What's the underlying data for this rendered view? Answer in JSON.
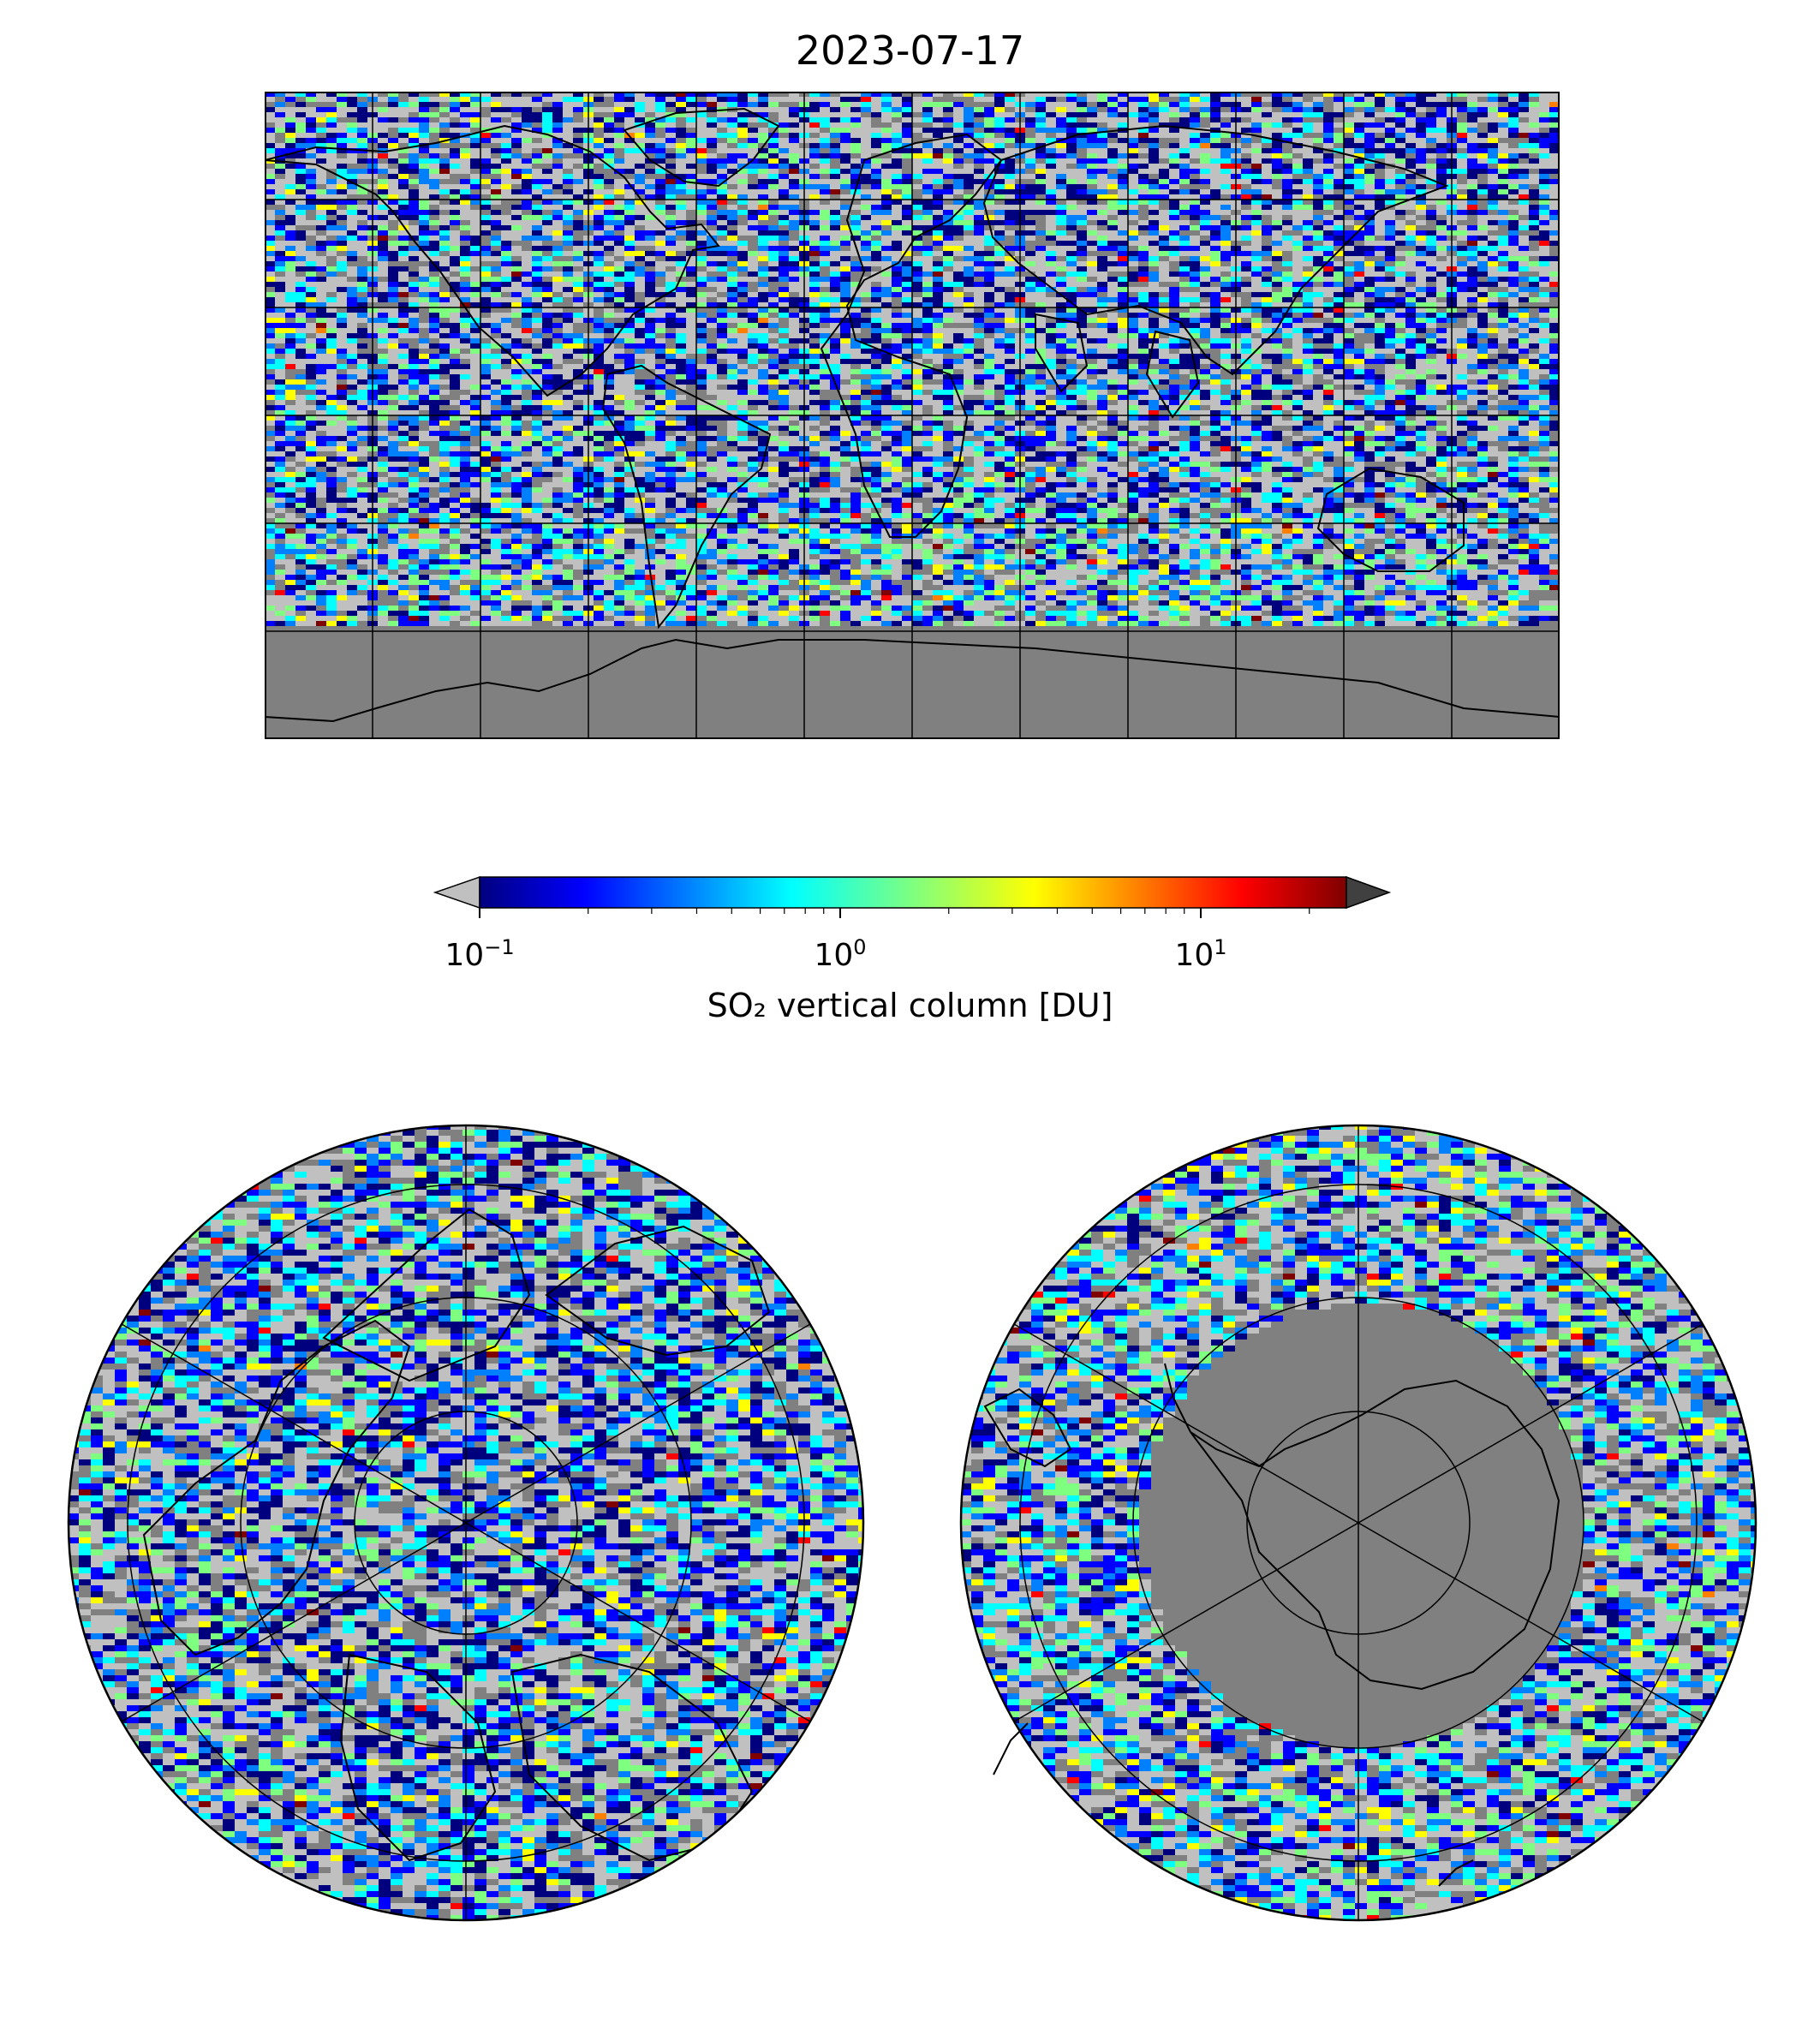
{
  "title": "2023-07-17",
  "colorbar": {
    "label": "SO₂ vertical column [DU]",
    "scale": "log",
    "range": [
      0.1,
      25
    ],
    "ticks": [
      {
        "base": "10",
        "exp": "−1",
        "value": 0.1
      },
      {
        "base": "10",
        "exp": "0",
        "value": 1
      },
      {
        "base": "10",
        "exp": "1",
        "value": 10
      }
    ],
    "colormap": [
      "#00007f",
      "#0000ff",
      "#007fff",
      "#00ffff",
      "#7fff7f",
      "#ffff00",
      "#ff7f00",
      "#ff0000",
      "#7f0000"
    ],
    "under_color": "#c0c0c0",
    "over_color": "#404040"
  },
  "maps": {
    "global": {
      "projection": "equirectangular",
      "grid_lon_step": 30,
      "grid_lat_step": 30,
      "nodata_color": "#808080"
    },
    "north_polar": {
      "projection": "north-polar-stereographic",
      "grid_lat_rings": [
        80,
        60,
        40,
        20,
        0
      ]
    },
    "south_polar": {
      "projection": "south-polar-stereographic",
      "grid_lat_rings": [
        -80,
        -60,
        -40,
        -20,
        0
      ]
    }
  },
  "colors": {
    "background": "#ffffff",
    "nodata": "#808080",
    "below_range": "#c0c0c0",
    "coastline": "#000000"
  }
}
